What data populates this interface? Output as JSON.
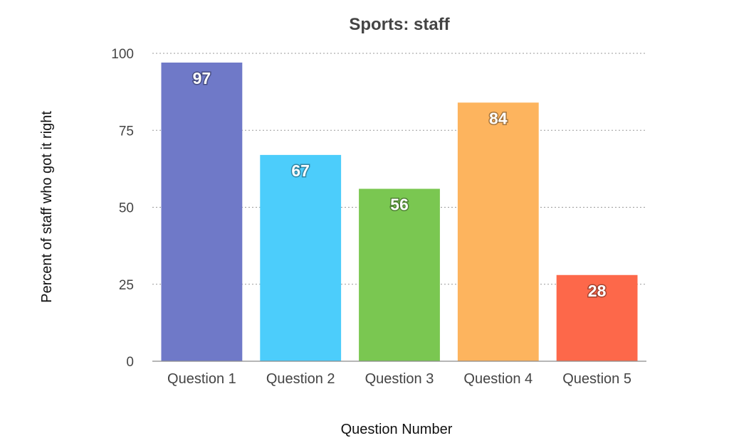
{
  "chart_data": {
    "type": "bar",
    "title": "Sports: staff",
    "xlabel": "Question Number",
    "ylabel": "Percent of staff who got it right",
    "categories": [
      "Question 1",
      "Question 2",
      "Question 3",
      "Question 4",
      "Question 5"
    ],
    "values": [
      97,
      67,
      56,
      84,
      28
    ],
    "data_labels": [
      "97",
      "67",
      "56",
      "84",
      "28"
    ],
    "colors": [
      "#6f79c8",
      "#4ccdfb",
      "#7ac751",
      "#fdb45e",
      "#fd684a"
    ],
    "ylim": [
      0,
      100
    ],
    "yticks": [
      0,
      25,
      50,
      75,
      100
    ],
    "ytick_labels": [
      "0",
      "25",
      "50",
      "75",
      "100"
    ],
    "grid": true,
    "legend": "none"
  }
}
